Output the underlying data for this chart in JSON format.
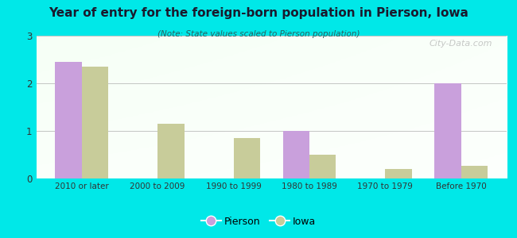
{
  "title": "Year of entry for the foreign-born population in Pierson, Iowa",
  "subtitle": "(Note: State values scaled to Pierson population)",
  "categories": [
    "2010 or later",
    "2000 to 2009",
    "1990 to 1999",
    "1980 to 1989",
    "1970 to 1979",
    "Before 1970"
  ],
  "pierson_values": [
    2.45,
    0,
    0,
    1.0,
    0,
    2.0
  ],
  "iowa_values": [
    2.35,
    1.15,
    0.85,
    0.5,
    0.2,
    0.27
  ],
  "pierson_color": "#c9a0dc",
  "iowa_color": "#c8cc9a",
  "background_color": "#00e8e8",
  "ylim": [
    0,
    3
  ],
  "yticks": [
    0,
    1,
    2,
    3
  ],
  "bar_width": 0.35,
  "watermark": "City-Data.com",
  "legend_pierson": "Pierson",
  "legend_iowa": "Iowa"
}
